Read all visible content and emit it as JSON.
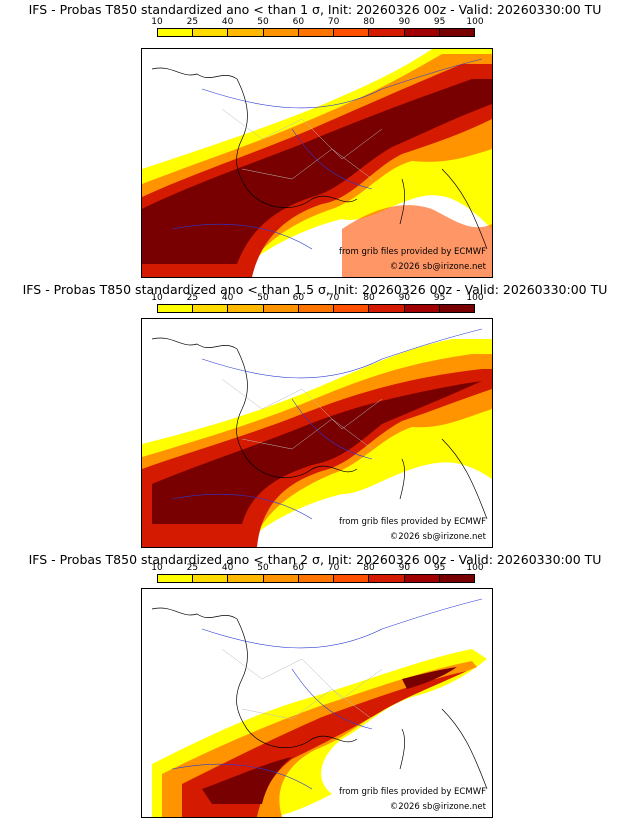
{
  "colorbar": {
    "labels": [
      "10",
      "25",
      "40",
      "50",
      "60",
      "70",
      "80",
      "90",
      "95",
      "100"
    ],
    "colors": [
      "#ffff00",
      "#ffdb00",
      "#ffb800",
      "#ff9400",
      "#ff7300",
      "#ff5000",
      "#d41a00",
      "#a00000",
      "#780000"
    ]
  },
  "panels": [
    {
      "title": "IFS - Probas T850  standardized ano < than 1 σ, Init: 20260326 00z - Valid: 20260330:00 TU",
      "source_credit": "from grib files provided by ECMWF",
      "copyright": "©2026 sb@irizone.net"
    },
    {
      "title": "IFS - Probas T850  standardized ano < than 1.5 σ, Init: 20260326 00z - Valid: 20260330:00 TU",
      "source_credit": "from grib files provided by ECMWF",
      "copyright": "©2026 sb@irizone.net"
    },
    {
      "title": "IFS - Probas T850  standardized ano < than 2 σ, Init: 20260326 00z - Valid: 20260330:00 TU",
      "source_credit": "from grib files provided by ECMWF",
      "copyright": "©2026 sb@irizone.net"
    }
  ]
}
